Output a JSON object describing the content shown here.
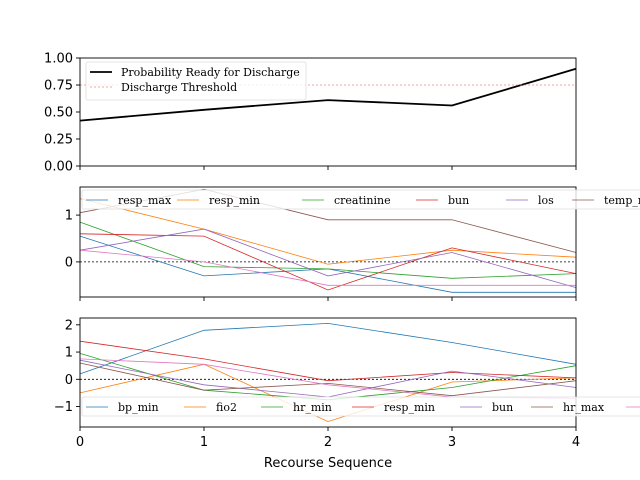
{
  "chart_data": [
    {
      "type": "line",
      "x": [
        0,
        1,
        2,
        3,
        4
      ],
      "xlabel": "",
      "ylabel": "",
      "ylim": [
        0,
        1
      ],
      "yticks": [
        "0.00",
        "0.25",
        "0.50",
        "0.75",
        "1.00"
      ],
      "legend_position": "upper-left",
      "series": [
        {
          "name": "Probability Ready for Discharge",
          "color": "#000000",
          "style": "solid",
          "values": [
            0.42,
            0.52,
            0.61,
            0.56,
            0.9
          ]
        },
        {
          "name": "Discharge Threshold",
          "color": "#e88a8a",
          "style": "dotted",
          "values": [
            0.75,
            0.75,
            0.75,
            0.75,
            0.75
          ]
        }
      ]
    },
    {
      "type": "line",
      "x": [
        0,
        1,
        2,
        3,
        4
      ],
      "xlabel": "",
      "ylabel": "",
      "ylim": [
        -0.75,
        1.6
      ],
      "yticks": [
        "0",
        "1"
      ],
      "reference_line": 0,
      "legend_position": "top",
      "series": [
        {
          "name": "resp_max",
          "color": "#1f77b4",
          "values": [
            0.55,
            -0.3,
            -0.15,
            -0.65,
            -0.65
          ]
        },
        {
          "name": "resp_min",
          "color": "#ff7f0e",
          "values": [
            1.35,
            0.7,
            -0.05,
            0.25,
            0.1
          ]
        },
        {
          "name": "creatinine",
          "color": "#2ca02c",
          "values": [
            0.85,
            -0.1,
            -0.15,
            -0.35,
            -0.25
          ]
        },
        {
          "name": "bun",
          "color": "#d62728",
          "values": [
            0.6,
            0.55,
            -0.6,
            0.3,
            -0.25
          ]
        },
        {
          "name": "los",
          "color": "#9467bd",
          "values": [
            0.25,
            0.7,
            -0.3,
            0.2,
            -0.55
          ]
        },
        {
          "name": "temp_max",
          "color": "#8c564b",
          "values": [
            1.05,
            1.55,
            0.9,
            0.9,
            0.2
          ]
        },
        {
          "name": "",
          "color": "#e377c2",
          "values": [
            0.25,
            0.0,
            -0.5,
            -0.5,
            -0.5
          ]
        }
      ]
    },
    {
      "type": "line",
      "x": [
        0,
        1,
        2,
        3,
        4
      ],
      "xlabel": "Recourse Sequence",
      "ylabel": "",
      "ylim": [
        -1.75,
        2.25
      ],
      "xticks": [
        "0",
        "1",
        "2",
        "3",
        "4"
      ],
      "yticks": [
        "−1",
        "0",
        "1",
        "2"
      ],
      "reference_line": 0,
      "legend_position": "bottom",
      "series": [
        {
          "name": "bp_min",
          "color": "#1f77b4",
          "values": [
            0.2,
            1.8,
            2.05,
            1.35,
            0.55
          ]
        },
        {
          "name": "fio2",
          "color": "#ff7f0e",
          "values": [
            -0.5,
            0.55,
            -1.55,
            -0.1,
            0.05
          ]
        },
        {
          "name": "hr_min",
          "color": "#2ca02c",
          "values": [
            0.95,
            -0.4,
            -0.75,
            -0.3,
            0.5
          ]
        },
        {
          "name": "resp_min",
          "color": "#d62728",
          "values": [
            1.4,
            0.75,
            -0.05,
            0.25,
            0.05
          ]
        },
        {
          "name": "bun",
          "color": "#9467bd",
          "values": [
            0.7,
            -0.2,
            -0.65,
            0.3,
            -0.3
          ]
        },
        {
          "name": "hr_max",
          "color": "#8c564b",
          "values": [
            0.6,
            -0.4,
            -0.15,
            -0.6,
            -0.05
          ]
        },
        {
          "name": "",
          "color": "#e377c2",
          "values": [
            0.75,
            0.55,
            -0.2,
            -0.65,
            -0.7
          ]
        }
      ]
    }
  ]
}
